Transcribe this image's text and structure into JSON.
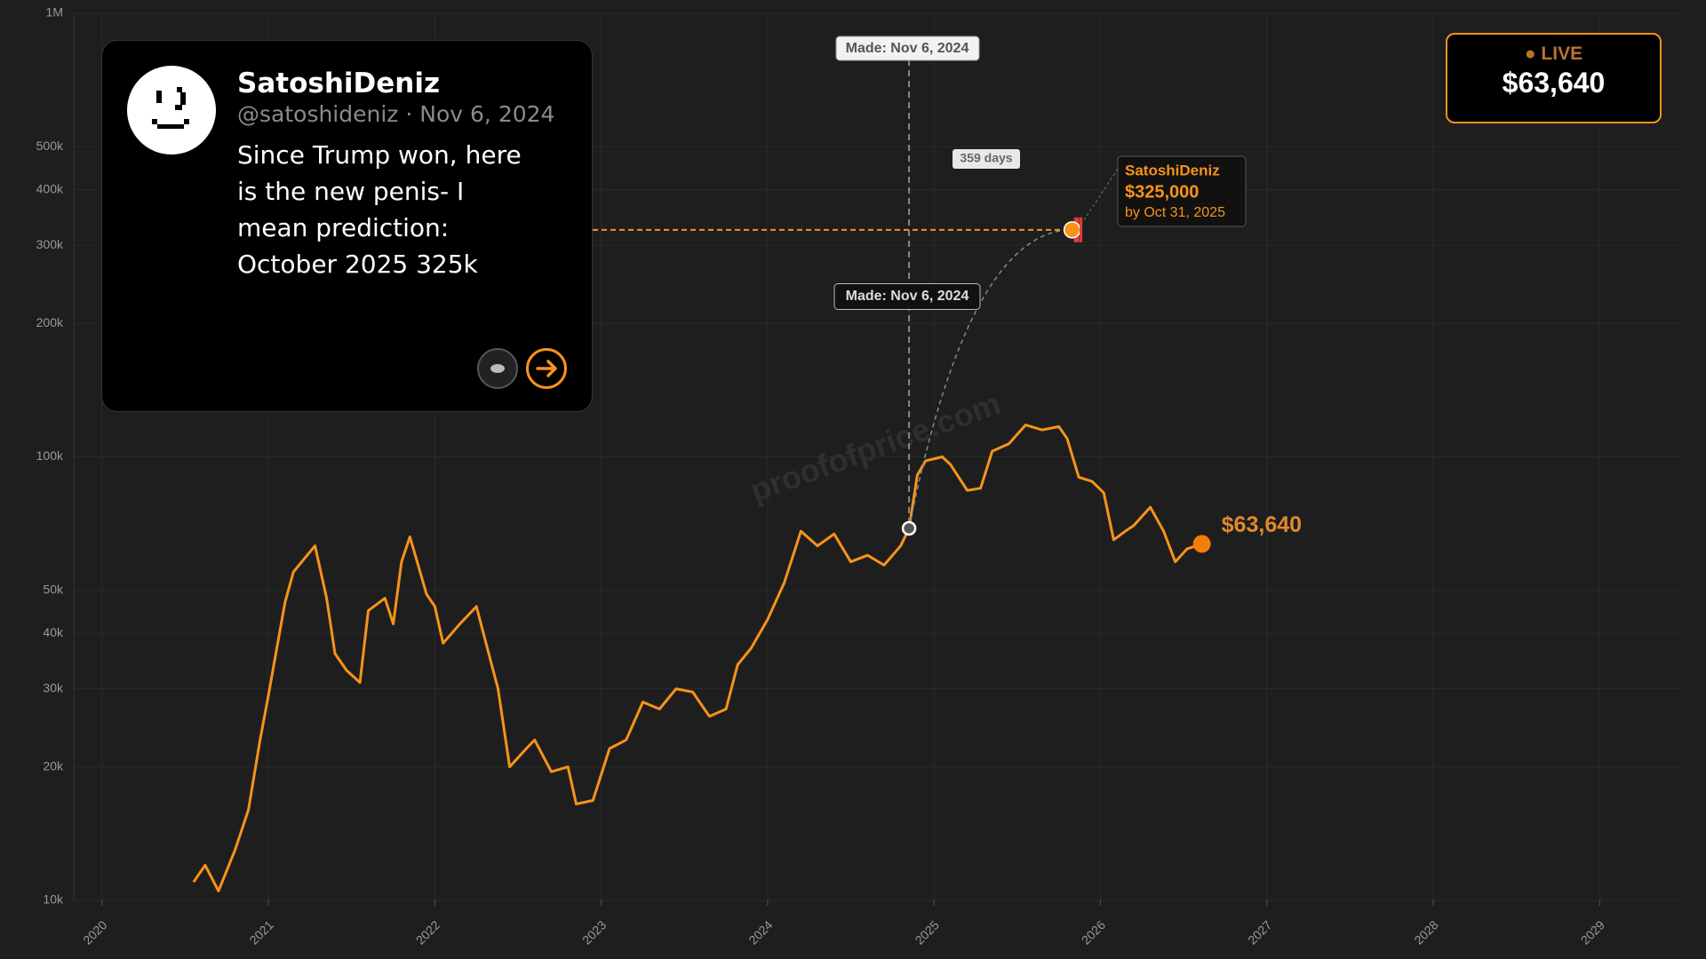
{
  "chart_data": {
    "type": "line",
    "log_scale": true,
    "grid": true,
    "xlim": [
      2019.83,
      2029.49
    ],
    "xticks": [
      2020,
      2021,
      2022,
      2023,
      2024,
      2025,
      2026,
      2027,
      2028,
      2029
    ],
    "ylim": [
      10000,
      1000000
    ],
    "yticks": [
      {
        "value": 10000,
        "label": "10k"
      },
      {
        "value": 20000,
        "label": "20k"
      },
      {
        "value": 30000,
        "label": "30k"
      },
      {
        "value": 40000,
        "label": "40k"
      },
      {
        "value": 50000,
        "label": "50k"
      },
      {
        "value": 100000,
        "label": "100k"
      },
      {
        "value": 200000,
        "label": "200k"
      },
      {
        "value": 300000,
        "label": "300k"
      },
      {
        "value": 400000,
        "label": "400k"
      },
      {
        "value": 500000,
        "label": "500k"
      },
      {
        "value": 1000000,
        "label": "1M"
      }
    ],
    "color": "#f7931a",
    "x": [
      2020.55,
      2020.62,
      2020.7,
      2020.8,
      2020.88,
      2020.95,
      2021.0,
      2021.05,
      2021.1,
      2021.15,
      2021.2,
      2021.28,
      2021.35,
      2021.4,
      2021.47,
      2021.55,
      2021.6,
      2021.7,
      2021.75,
      2021.8,
      2021.85,
      2021.9,
      2021.95,
      2022.0,
      2022.05,
      2022.15,
      2022.25,
      2022.3,
      2022.38,
      2022.45,
      2022.55,
      2022.6,
      2022.7,
      2022.8,
      2022.85,
      2022.95,
      2023.05,
      2023.15,
      2023.25,
      2023.35,
      2023.45,
      2023.55,
      2023.65,
      2023.75,
      2023.82,
      2023.9,
      2024.0,
      2024.1,
      2024.2,
      2024.3,
      2024.4,
      2024.5,
      2024.6,
      2024.7,
      2024.8,
      2024.85,
      2024.9,
      2024.95,
      2025.05,
      2025.1,
      2025.2,
      2025.28,
      2025.35,
      2025.45,
      2025.55,
      2025.65,
      2025.75,
      2025.8,
      2025.87,
      2025.95,
      2026.02,
      2026.08,
      2026.15,
      2026.2,
      2026.3,
      2026.38,
      2026.45,
      2026.52,
      2026.61
    ],
    "values": [
      11000,
      12000,
      10500,
      13000,
      16000,
      23000,
      29000,
      37000,
      47000,
      55000,
      58000,
      63000,
      48000,
      36000,
      33000,
      31000,
      45000,
      48000,
      42000,
      58000,
      66000,
      57000,
      49000,
      46000,
      38000,
      42000,
      46000,
      39000,
      30000,
      20000,
      22000,
      23000,
      19500,
      20000,
      16500,
      16800,
      22000,
      23000,
      28000,
      27000,
      30000,
      29500,
      26000,
      27000,
      34000,
      37000,
      43000,
      52000,
      68000,
      63000,
      67000,
      58000,
      60000,
      57000,
      63000,
      69000,
      91000,
      98000,
      100000,
      96000,
      84000,
      85000,
      103000,
      107000,
      118000,
      115000,
      117000,
      110000,
      90000,
      88000,
      83000,
      65000,
      68000,
      70000,
      77000,
      68000,
      58000,
      62000,
      63640
    ],
    "made": {
      "x": 2024.85,
      "value": 69000,
      "label": "Made: Nov 6, 2024"
    },
    "days_label": "359 days",
    "prediction": {
      "x": 2025.83,
      "value": 325000,
      "label": "$325,000",
      "author": "SatoshiDeniz",
      "deadline": "by Oct 31, 2025"
    },
    "live": {
      "tag": "LIVE",
      "value": 63640,
      "label": "$63,640"
    },
    "watermark": "proofofprice.com"
  },
  "tweet": {
    "name": "SatoshiDeniz",
    "handle": "@satoshideniz",
    "separator": "·",
    "date": "Nov 6, 2024",
    "text": "Since Trump won, here is the new penis- I mean prediction: October 2025 325k"
  }
}
